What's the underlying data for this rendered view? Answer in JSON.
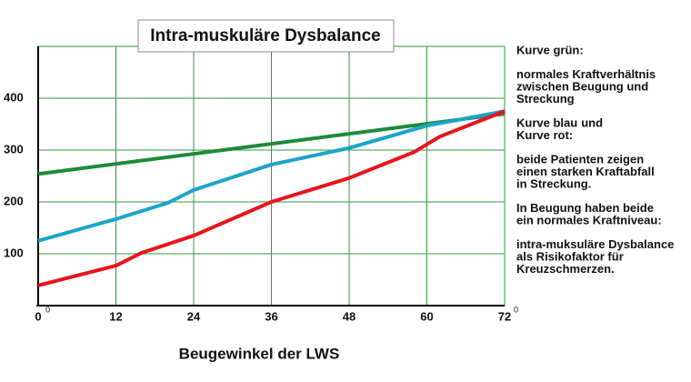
{
  "chart_data": {
    "type": "line",
    "title": "Intra-muskuläre Dysbalance",
    "x_label": "Beugewinkel der LWS",
    "degree_mark": "0",
    "xlim": [
      0,
      72
    ],
    "xticks": [
      0,
      12,
      24,
      36,
      48,
      60,
      72
    ],
    "ylim": [
      0,
      500
    ],
    "yticks": [
      100,
      200,
      300,
      400
    ],
    "grid": true,
    "grid_color": "#2f9a3e",
    "series": [
      {
        "name": "Kurve grün:",
        "color": "#1d8a3a",
        "x": [
          0,
          72
        ],
        "values": [
          254,
          370
        ]
      },
      {
        "name": "Kurve blau",
        "color": "#1ca4c8",
        "x": [
          0,
          12,
          20,
          24,
          36,
          48,
          60,
          72
        ],
        "values": [
          125,
          167,
          198,
          223,
          272,
          304,
          347,
          375
        ]
      },
      {
        "name": "Kurve rot:",
        "color": "#e8141c",
        "x": [
          0,
          12,
          16,
          24,
          36,
          48,
          58,
          62,
          72
        ],
        "values": [
          39,
          77,
          102,
          135,
          200,
          246,
          296,
          326,
          375
        ]
      }
    ],
    "notes": {
      "green_text": [
        "normales Kraftverhältnis",
        "zwischen Beugung und",
        "Streckung"
      ],
      "joiner": "und",
      "paragraphs": [
        [
          "beide Patienten zeigen",
          "einen starken Kraftabfall",
          "in Streckung."
        ],
        [
          "In Beugung haben beide",
          "ein normales Kraftniveau:"
        ],
        [
          "intra-muksuläre Dysbalance",
          "als Risikofaktor für",
          "Kreuzschmerzen."
        ]
      ]
    }
  }
}
